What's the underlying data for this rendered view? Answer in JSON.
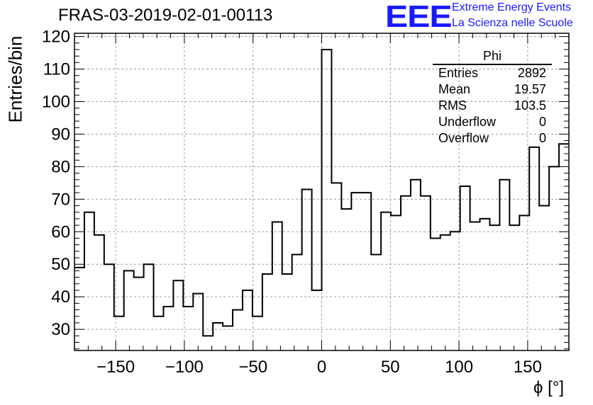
{
  "header": {
    "title": "FRAS-03-2019-02-01-00113",
    "logo_text": "EEE",
    "logo_line1": "Extreme Energy Events",
    "logo_line2": "La Scienza nelle Scuole"
  },
  "stats_box": {
    "title": "Phi",
    "rows": [
      {
        "label": "Entries",
        "value": "2892"
      },
      {
        "label": "Mean",
        "value": "19.57"
      },
      {
        "label": "RMS",
        "value": "103.5"
      },
      {
        "label": "Underflow",
        "value": "0"
      },
      {
        "label": "Overflow",
        "value": "0"
      }
    ]
  },
  "chart_data": {
    "type": "histogram",
    "title": "FRAS-03-2019-02-01-00113",
    "xlabel": "ϕ [°]",
    "ylabel": "Entries/bin",
    "xlim": [
      -180,
      180
    ],
    "ylim": [
      23.5,
      121
    ],
    "bin_width": 7.2,
    "x_ticks": [
      -150,
      -100,
      -50,
      0,
      50,
      100,
      150
    ],
    "x_tick_labels": [
      "−150",
      "−100",
      "−50",
      "0",
      "50",
      "100",
      "150"
    ],
    "y_ticks": [
      30,
      40,
      50,
      60,
      70,
      80,
      90,
      100,
      110,
      120
    ],
    "grid": true,
    "line_color": "#000000",
    "values": [
      49,
      66,
      59,
      50,
      34,
      48,
      46,
      50,
      34,
      37,
      45,
      37,
      41,
      28,
      32,
      31,
      36,
      42,
      34,
      47,
      63,
      47,
      53,
      73,
      42,
      116,
      75,
      67,
      72,
      72,
      53,
      66,
      65,
      71,
      76,
      71,
      58,
      59,
      60,
      74,
      63,
      64,
      62,
      76,
      62,
      65,
      86,
      68,
      80,
      87
    ]
  }
}
